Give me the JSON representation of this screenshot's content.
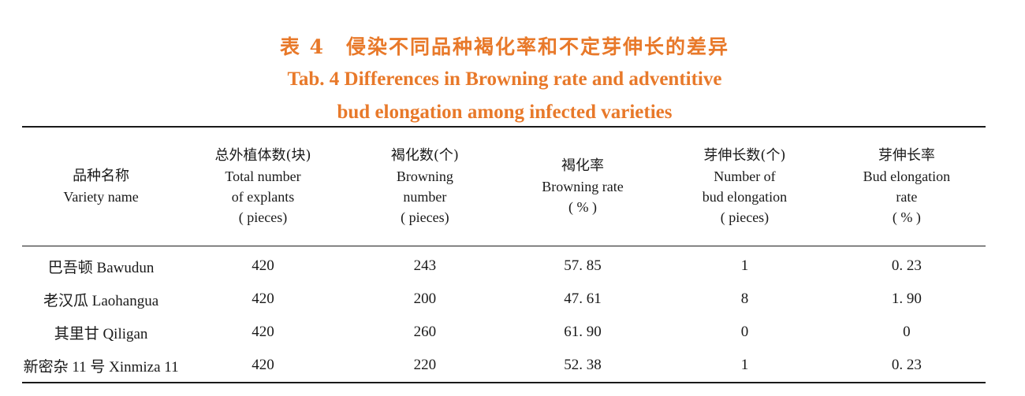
{
  "title": {
    "cn": "表 4　侵染不同品种褐化率和不定芽伸长的差异",
    "en_line1": "Tab. 4 Differences in Browning rate and adventitive",
    "en_line2": "bud elongation among infected varieties"
  },
  "table": {
    "headers": [
      {
        "lines": [
          "品种名称",
          "Variety name"
        ]
      },
      {
        "lines": [
          "总外植体数(块)",
          "Total number",
          "of explants",
          "( pieces)"
        ]
      },
      {
        "lines": [
          "褐化数(个)",
          "Browning",
          "number",
          "( pieces)"
        ]
      },
      {
        "lines": [
          "褐化率",
          "Browning rate",
          "( % )"
        ]
      },
      {
        "lines": [
          "芽伸长数(个)",
          "Number of",
          "bud elongation",
          "( pieces)"
        ]
      },
      {
        "lines": [
          "芽伸长率",
          "Bud elongation",
          "rate",
          "( % )"
        ]
      }
    ],
    "rows": [
      {
        "variety": "巴吾顿 Bawudun",
        "total": "420",
        "browning": "243",
        "browning_rate": "57. 85",
        "bud_number": "1",
        "bud_rate": "0. 23"
      },
      {
        "variety": "老汉瓜 Laohangua",
        "total": "420",
        "browning": "200",
        "browning_rate": "47. 61",
        "bud_number": "8",
        "bud_rate": "1. 90"
      },
      {
        "variety": "其里甘 Qiligan",
        "total": "420",
        "browning": "260",
        "browning_rate": "61. 90",
        "bud_number": "0",
        "bud_rate": "0"
      },
      {
        "variety": "新密杂 11 号 Xinmiza 11",
        "total": "420",
        "browning": "220",
        "browning_rate": "52. 38",
        "bud_number": "1",
        "bud_rate": "0. 23"
      }
    ]
  },
  "colors": {
    "title": "#e8792a",
    "text": "#1a1a1a"
  }
}
